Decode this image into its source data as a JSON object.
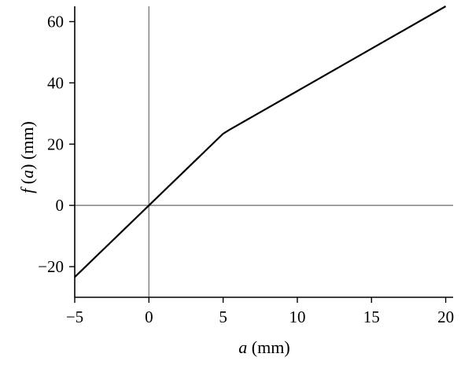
{
  "chart_data": {
    "type": "line",
    "xlabel": {
      "var": "a",
      "unit": " (mm)"
    },
    "ylabel": {
      "var": "f",
      "open": " (",
      "arg": "a",
      "close": ") (mm)"
    },
    "xlim": [
      -5,
      20.5
    ],
    "ylim": [
      -30,
      65
    ],
    "xticks": [
      -5,
      0,
      5,
      10,
      15,
      20
    ],
    "yticks": [
      -20,
      0,
      20,
      40,
      60
    ],
    "xtick_labels": [
      "−5",
      "0",
      "5",
      "10",
      "15",
      "20"
    ],
    "ytick_labels": [
      "−20",
      "0",
      "20",
      "40",
      "60"
    ],
    "reference_lines": {
      "x0": true,
      "y0": true,
      "color": "#8c8c8c"
    },
    "series": [
      {
        "color": "#000000",
        "x": [
          -5,
          0,
          5,
          5.4,
          20
        ],
        "y": [
          -23.4,
          0,
          23.4,
          24.6,
          65
        ]
      }
    ]
  }
}
